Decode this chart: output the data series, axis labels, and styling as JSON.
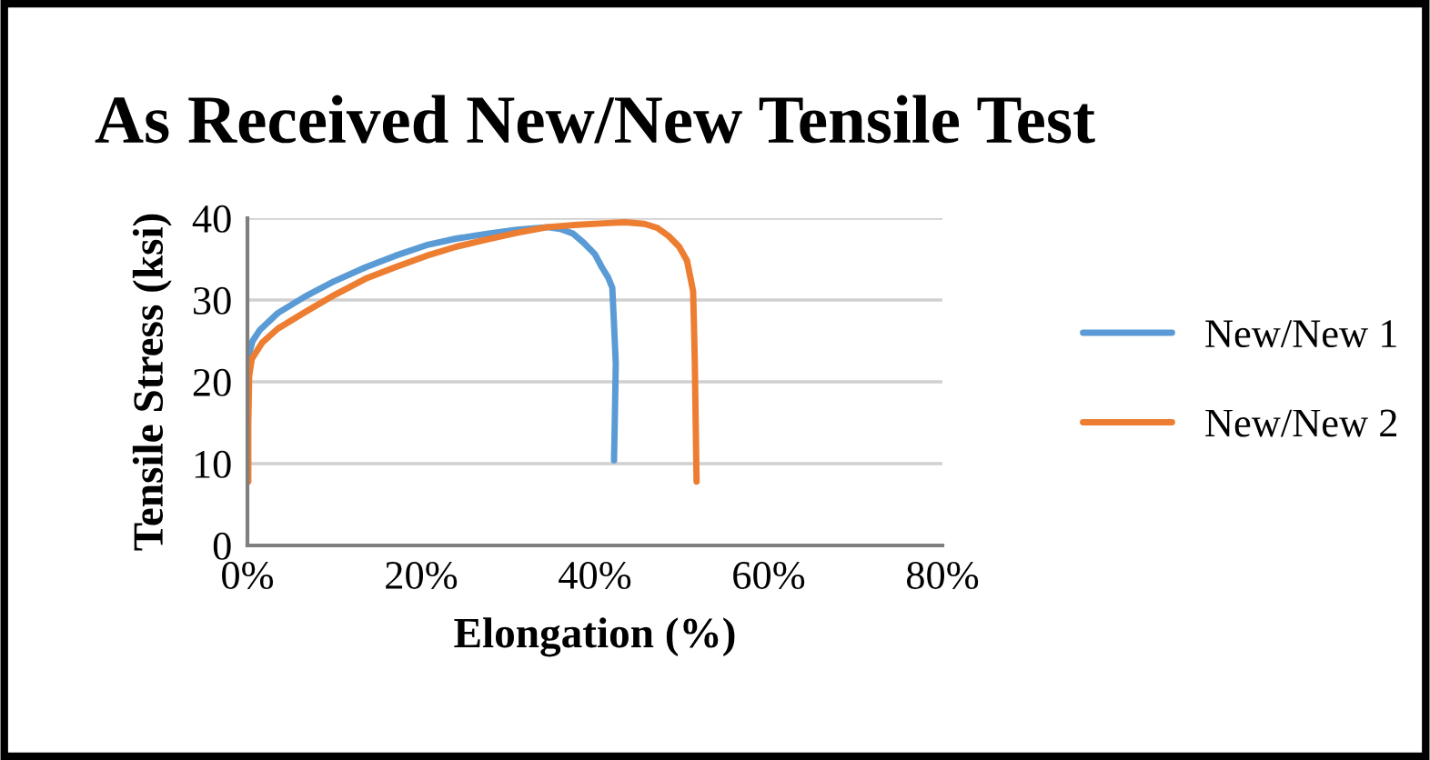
{
  "chart_data": {
    "type": "line",
    "title": "As Received New/New Tensile Test",
    "xlabel": "Elongation (%)",
    "ylabel": "Tensile Stress (ksi)",
    "xlim": [
      0,
      80
    ],
    "xticks": [
      {
        "value": 0,
        "label": "0%"
      },
      {
        "value": 20,
        "label": "20%"
      },
      {
        "value": 40,
        "label": "40%"
      },
      {
        "value": 60,
        "label": "60%"
      },
      {
        "value": 80,
        "label": "80%"
      }
    ],
    "ylim": [
      0,
      40
    ],
    "yticks": [
      0,
      10,
      20,
      30,
      40
    ],
    "grid": "y",
    "legend": "right",
    "marker": "none",
    "line_style": "solid",
    "series": [
      {
        "name": "New/New 1",
        "color": "#5b9bd5",
        "x": [
          0,
          0.2,
          0.6,
          1.4,
          3.5,
          6.6,
          10,
          13.6,
          17,
          20.6,
          24,
          27.6,
          31,
          34.5,
          36,
          37.5,
          38.7,
          40,
          40.8,
          41.5,
          42,
          42.2,
          42.4,
          42.3,
          42.2
        ],
        "values": [
          22.2,
          23.5,
          25,
          26.3,
          28.4,
          30.4,
          32.3,
          34,
          35.4,
          36.7,
          37.5,
          38.1,
          38.6,
          38.9,
          38.7,
          38.1,
          37,
          35.6,
          34,
          32.8,
          31.5,
          27,
          22.2,
          16,
          10.4
        ]
      },
      {
        "name": "New/New 2",
        "color": "#ed7d31",
        "x": [
          0.1,
          0.1,
          0.2,
          0.5,
          1.7,
          3.5,
          6.6,
          10,
          13.6,
          17,
          20.6,
          24,
          27.6,
          31,
          34.5,
          38,
          41.5,
          43.5,
          45.7,
          47.2,
          48.5,
          49.7,
          50.6,
          51.3,
          51.4,
          51.5,
          51.6,
          51.7
        ],
        "values": [
          7.8,
          15,
          20.7,
          22.8,
          24.8,
          26.5,
          28.5,
          30.6,
          32.6,
          34,
          35.4,
          36.5,
          37.4,
          38.2,
          38.9,
          39.2,
          39.4,
          39.5,
          39.3,
          38.8,
          37.8,
          36.5,
          34.8,
          31.1,
          27,
          22.2,
          15,
          7.8
        ]
      }
    ]
  }
}
